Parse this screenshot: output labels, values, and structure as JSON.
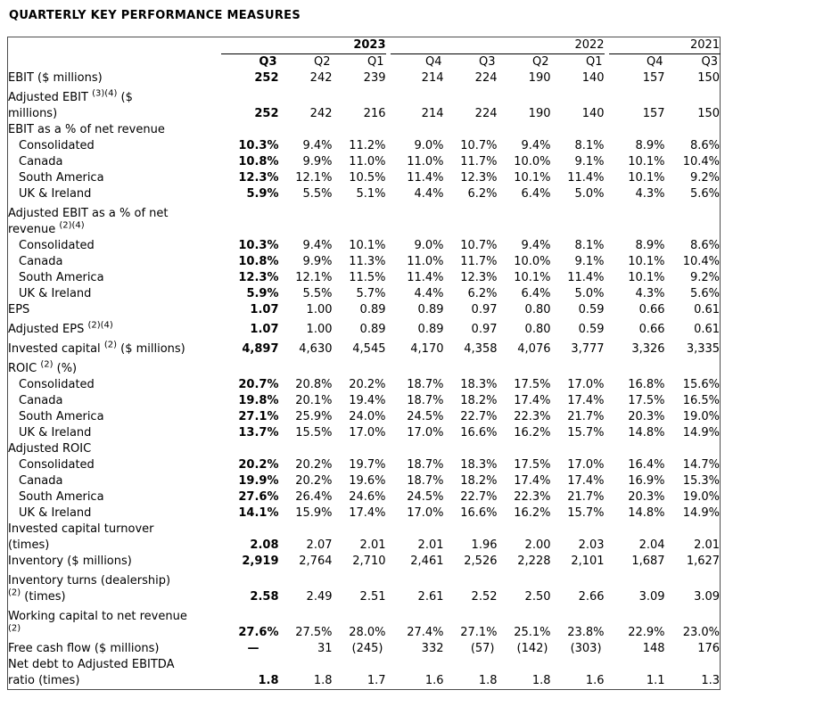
{
  "page_title": "QUARTERLY KEY PERFORMANCE MEASURES",
  "colors": {
    "text": "#000000",
    "border": "#4d4d4d",
    "group_underline": "#000000",
    "background": "#ffffff"
  },
  "table": {
    "year_groups": [
      {
        "label": "2023",
        "cols": 3,
        "bold": true
      },
      {
        "label": "2022",
        "cols": 4,
        "bold": false
      },
      {
        "label": "2021",
        "cols": 2,
        "bold": false
      }
    ],
    "quarter_headers": [
      "Q3",
      "Q2",
      "Q1",
      "Q4",
      "Q3",
      "Q2",
      "Q1",
      "Q4",
      "Q3"
    ],
    "spacer_after": [
      2,
      6
    ],
    "rows": [
      {
        "label": [
          {
            "t": "EBIT ($ millions)"
          }
        ],
        "values": [
          "252",
          "242",
          "239",
          "214",
          "224",
          "190",
          "140",
          "157",
          "150"
        ]
      },
      {
        "label": [
          {
            "t": "Adjusted EBIT "
          },
          {
            "sup": "(3)(4)"
          },
          {
            "t": " ($"
          },
          {
            "br": true
          },
          {
            "t": "millions)"
          }
        ],
        "values": [
          "252",
          "242",
          "216",
          "214",
          "224",
          "190",
          "140",
          "157",
          "150"
        ]
      },
      {
        "label": [
          {
            "t": "EBIT as a % of net revenue"
          }
        ],
        "section": true,
        "values": null
      },
      {
        "label": [
          {
            "t": "Consolidated"
          }
        ],
        "indent": true,
        "values": [
          "10.3%",
          "9.4%",
          "11.2%",
          "9.0%",
          "10.7%",
          "9.4%",
          "8.1%",
          "8.9%",
          "8.6%"
        ]
      },
      {
        "label": [
          {
            "t": "Canada"
          }
        ],
        "indent": true,
        "values": [
          "10.8%",
          "9.9%",
          "11.0%",
          "11.0%",
          "11.7%",
          "10.0%",
          "9.1%",
          "10.1%",
          "10.4%"
        ]
      },
      {
        "label": [
          {
            "t": "South America"
          }
        ],
        "indent": true,
        "values": [
          "12.3%",
          "12.1%",
          "10.5%",
          "11.4%",
          "12.3%",
          "10.1%",
          "11.4%",
          "10.1%",
          "9.2%"
        ]
      },
      {
        "label": [
          {
            "t": "UK & Ireland"
          }
        ],
        "indent": true,
        "values": [
          "5.9%",
          "5.5%",
          "5.1%",
          "4.4%",
          "6.2%",
          "6.4%",
          "5.0%",
          "4.3%",
          "5.6%"
        ]
      },
      {
        "label": [
          {
            "t": "Adjusted EBIT as a % of net"
          },
          {
            "br": true
          },
          {
            "t": "revenue "
          },
          {
            "sup": "(2)(4)"
          }
        ],
        "section": true,
        "values": null
      },
      {
        "label": [
          {
            "t": "Consolidated"
          }
        ],
        "indent": true,
        "values": [
          "10.3%",
          "9.4%",
          "10.1%",
          "9.0%",
          "10.7%",
          "9.4%",
          "8.1%",
          "8.9%",
          "8.6%"
        ]
      },
      {
        "label": [
          {
            "t": "Canada"
          }
        ],
        "indent": true,
        "values": [
          "10.8%",
          "9.9%",
          "11.3%",
          "11.0%",
          "11.7%",
          "10.0%",
          "9.1%",
          "10.1%",
          "10.4%"
        ]
      },
      {
        "label": [
          {
            "t": "South America"
          }
        ],
        "indent": true,
        "values": [
          "12.3%",
          "12.1%",
          "11.5%",
          "11.4%",
          "12.3%",
          "10.1%",
          "11.4%",
          "10.1%",
          "9.2%"
        ]
      },
      {
        "label": [
          {
            "t": "UK & Ireland"
          }
        ],
        "indent": true,
        "values": [
          "5.9%",
          "5.5%",
          "5.7%",
          "4.4%",
          "6.2%",
          "6.4%",
          "5.0%",
          "4.3%",
          "5.6%"
        ]
      },
      {
        "label": [
          {
            "t": "EPS"
          }
        ],
        "values": [
          "1.07",
          "1.00",
          "0.89",
          "0.89",
          "0.97",
          "0.80",
          "0.59",
          "0.66",
          "0.61"
        ]
      },
      {
        "label": [
          {
            "t": "Adjusted EPS "
          },
          {
            "sup": "(2)(4)"
          }
        ],
        "values": [
          "1.07",
          "1.00",
          "0.89",
          "0.89",
          "0.97",
          "0.80",
          "0.59",
          "0.66",
          "0.61"
        ]
      },
      {
        "label": [
          {
            "t": "Invested capital "
          },
          {
            "sup": "(2)"
          },
          {
            "t": " ($ millions)"
          }
        ],
        "values": [
          "4,897",
          "4,630",
          "4,545",
          "4,170",
          "4,358",
          "4,076",
          "3,777",
          "3,326",
          "3,335"
        ]
      },
      {
        "label": [
          {
            "t": "ROIC "
          },
          {
            "sup": "(2)"
          },
          {
            "t": " (%)"
          }
        ],
        "section": true,
        "values": null
      },
      {
        "label": [
          {
            "t": "Consolidated"
          }
        ],
        "indent": true,
        "values": [
          "20.7%",
          "20.8%",
          "20.2%",
          "18.7%",
          "18.3%",
          "17.5%",
          "17.0%",
          "16.8%",
          "15.6%"
        ]
      },
      {
        "label": [
          {
            "t": "Canada"
          }
        ],
        "indent": true,
        "values": [
          "19.8%",
          "20.1%",
          "19.4%",
          "18.7%",
          "18.2%",
          "17.4%",
          "17.4%",
          "17.5%",
          "16.5%"
        ]
      },
      {
        "label": [
          {
            "t": "South America"
          }
        ],
        "indent": true,
        "values": [
          "27.1%",
          "25.9%",
          "24.0%",
          "24.5%",
          "22.7%",
          "22.3%",
          "21.7%",
          "20.3%",
          "19.0%"
        ]
      },
      {
        "label": [
          {
            "t": "UK & Ireland"
          }
        ],
        "indent": true,
        "values": [
          "13.7%",
          "15.5%",
          "17.0%",
          "17.0%",
          "16.6%",
          "16.2%",
          "15.7%",
          "14.8%",
          "14.9%"
        ]
      },
      {
        "label": [
          {
            "t": "Adjusted ROIC"
          }
        ],
        "section": true,
        "values": null
      },
      {
        "label": [
          {
            "t": "Consolidated"
          }
        ],
        "indent": true,
        "values": [
          "20.2%",
          "20.2%",
          "19.7%",
          "18.7%",
          "18.3%",
          "17.5%",
          "17.0%",
          "16.4%",
          "14.7%"
        ]
      },
      {
        "label": [
          {
            "t": "Canada"
          }
        ],
        "indent": true,
        "values": [
          "19.9%",
          "20.2%",
          "19.6%",
          "18.7%",
          "18.2%",
          "17.4%",
          "17.4%",
          "16.9%",
          "15.3%"
        ]
      },
      {
        "label": [
          {
            "t": "South America"
          }
        ],
        "indent": true,
        "values": [
          "27.6%",
          "26.4%",
          "24.6%",
          "24.5%",
          "22.7%",
          "22.3%",
          "21.7%",
          "20.3%",
          "19.0%"
        ]
      },
      {
        "label": [
          {
            "t": "UK & Ireland"
          }
        ],
        "indent": true,
        "values": [
          "14.1%",
          "15.9%",
          "17.4%",
          "17.0%",
          "16.6%",
          "16.2%",
          "15.7%",
          "14.8%",
          "14.9%"
        ]
      },
      {
        "label": [
          {
            "t": "Invested capital turnover"
          },
          {
            "br": true
          },
          {
            "t": "(times)"
          }
        ],
        "values": [
          "2.08",
          "2.07",
          "2.01",
          "2.01",
          "1.96",
          "2.00",
          "2.03",
          "2.04",
          "2.01"
        ]
      },
      {
        "label": [
          {
            "t": "Inventory ($ millions)"
          }
        ],
        "values": [
          "2,919",
          "2,764",
          "2,710",
          "2,461",
          "2,526",
          "2,228",
          "2,101",
          "1,687",
          "1,627"
        ]
      },
      {
        "label": [
          {
            "t": "Inventory turns (dealership)"
          },
          {
            "br": true
          },
          {
            "sup": "(2)"
          },
          {
            "t": " (times)"
          }
        ],
        "values": [
          "2.58",
          "2.49",
          "2.51",
          "2.61",
          "2.52",
          "2.50",
          "2.66",
          "3.09",
          "3.09"
        ]
      },
      {
        "label": [
          {
            "t": "Working capital to net revenue"
          },
          {
            "br": true
          },
          {
            "sup": "(2)"
          }
        ],
        "values": [
          "27.6%",
          "27.5%",
          "28.0%",
          "27.4%",
          "27.1%",
          "25.1%",
          "23.8%",
          "22.9%",
          "23.0%"
        ]
      },
      {
        "label": [
          {
            "t": "Free cash flow ($ millions)"
          }
        ],
        "values": [
          "—",
          "31",
          "(245)",
          "332",
          "(57)",
          "(142)",
          "(303)",
          "148",
          "176"
        ]
      },
      {
        "label": [
          {
            "t": "Net debt to Adjusted EBITDA"
          },
          {
            "br": true
          },
          {
            "t": "ratio (times)"
          }
        ],
        "values": [
          "1.8",
          "1.8",
          "1.7",
          "1.6",
          "1.8",
          "1.8",
          "1.6",
          "1.1",
          "1.3"
        ]
      }
    ]
  }
}
